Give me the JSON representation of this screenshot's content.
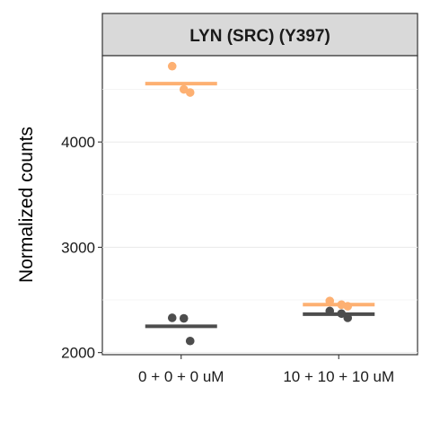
{
  "chart_data": {
    "type": "scatter",
    "title": "LYN (SRC) (Y397)",
    "ylabel": "Normalized counts",
    "xlabel": "",
    "categories": [
      "0 + 0 + 0 uM",
      "10 + 10 + 10 uM"
    ],
    "ylim": [
      1980,
      4820
    ],
    "yticks": [
      2000,
      3000,
      4000
    ],
    "grid": true,
    "series": [
      {
        "color": "#FDB072",
        "points": [
          {
            "category": "0 + 0 + 0 uM",
            "y": 4720
          },
          {
            "category": "0 + 0 + 0 uM",
            "y": 4500
          },
          {
            "category": "0 + 0 + 0 uM",
            "y": 4470
          },
          {
            "category": "10 + 10 + 10 uM",
            "y": 2490
          },
          {
            "category": "10 + 10 + 10 uM",
            "y": 2455
          },
          {
            "category": "10 + 10 + 10 uM",
            "y": 2440
          }
        ],
        "means": [
          {
            "category": "0 + 0 + 0 uM",
            "y": 4555
          },
          {
            "category": "10 + 10 + 10 uM",
            "y": 2455
          }
        ]
      },
      {
        "color": "#4D4D4D",
        "points": [
          {
            "category": "0 + 0 + 0 uM",
            "y": 2330
          },
          {
            "category": "0 + 0 + 0 uM",
            "y": 2325
          },
          {
            "category": "0 + 0 + 0 uM",
            "y": 2110
          },
          {
            "category": "10 + 10 + 10 uM",
            "y": 2395
          },
          {
            "category": "10 + 10 + 10 uM",
            "y": 2370
          },
          {
            "category": "10 + 10 + 10 uM",
            "y": 2330
          }
        ],
        "means": [
          {
            "category": "0 + 0 + 0 uM",
            "y": 2250
          },
          {
            "category": "10 + 10 + 10 uM",
            "y": 2365
          }
        ]
      }
    ]
  }
}
